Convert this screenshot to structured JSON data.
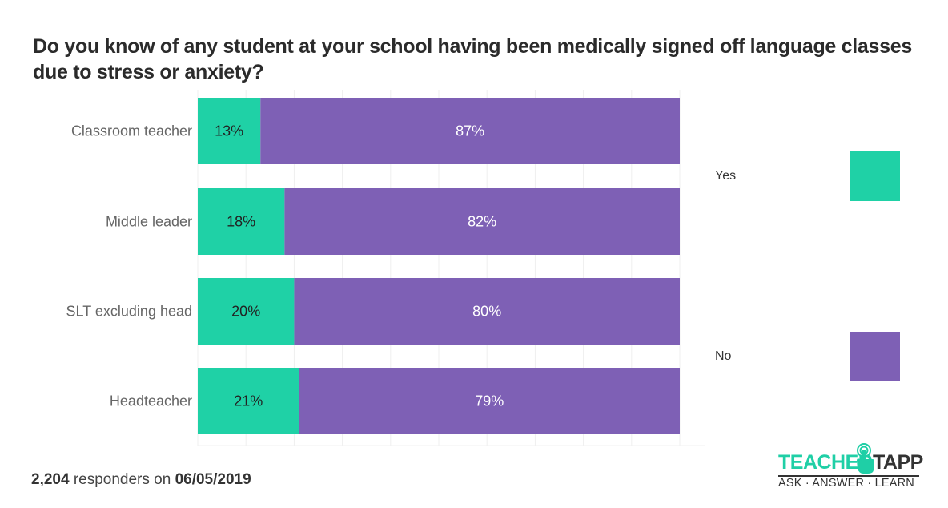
{
  "chart_data": {
    "type": "bar",
    "orientation": "horizontal",
    "stacked": true,
    "title": "Do you know of any student at your school having been medically signed off language classes due to stress or anxiety?",
    "categories": [
      "Classroom teacher",
      "Middle leader",
      "SLT excluding head",
      "Headteacher"
    ],
    "series": [
      {
        "name": "Yes",
        "color": "#1fd1a6",
        "values": [
          13,
          18,
          20,
          21
        ],
        "labels": [
          "13%",
          "18%",
          "20%",
          "21%"
        ]
      },
      {
        "name": "No",
        "color": "#7e60b5",
        "values": [
          87,
          82,
          80,
          79
        ],
        "labels": [
          "87%",
          "82%",
          "80%",
          "79%"
        ]
      }
    ],
    "xlim": [
      0,
      100
    ],
    "grid": true,
    "legend_position": "right"
  },
  "footer": {
    "count": "2,204",
    "text": " responders on ",
    "date": "06/05/2019"
  },
  "logo": {
    "word1": "TEACHER",
    "word2": "TAPP",
    "tagline": "ASK · ANSWER · LEARN"
  }
}
